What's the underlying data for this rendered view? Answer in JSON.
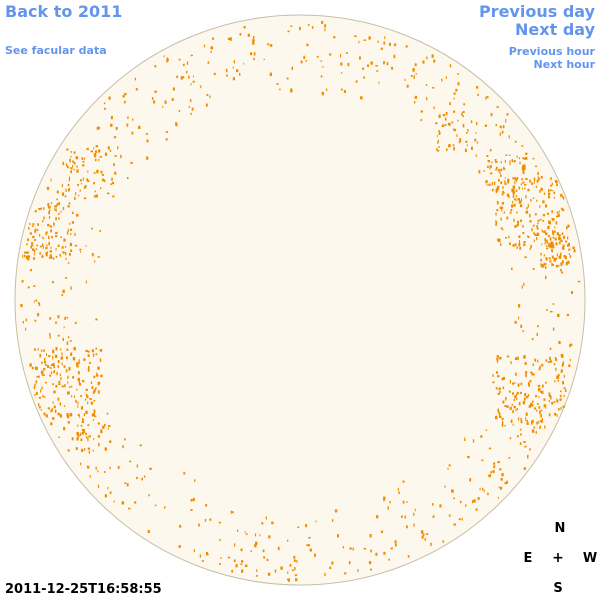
{
  "nav": {
    "back_label": "Back to 2011",
    "facular_label": "See facular data",
    "prev_day_label": "Previous day",
    "next_day_label": "Next day",
    "prev_hour_label": "Previous hour",
    "next_hour_label": "Next hour"
  },
  "timestamp": "2011-12-25T16:58:55",
  "compass": {
    "north": "N",
    "south": "S",
    "east": "E",
    "west": "W",
    "center": "+"
  },
  "colors": {
    "link": "#6495ed",
    "disk_fill": "#fdf8ed",
    "disk_outline": "#c8bda8",
    "facula": "#f08c00"
  }
}
